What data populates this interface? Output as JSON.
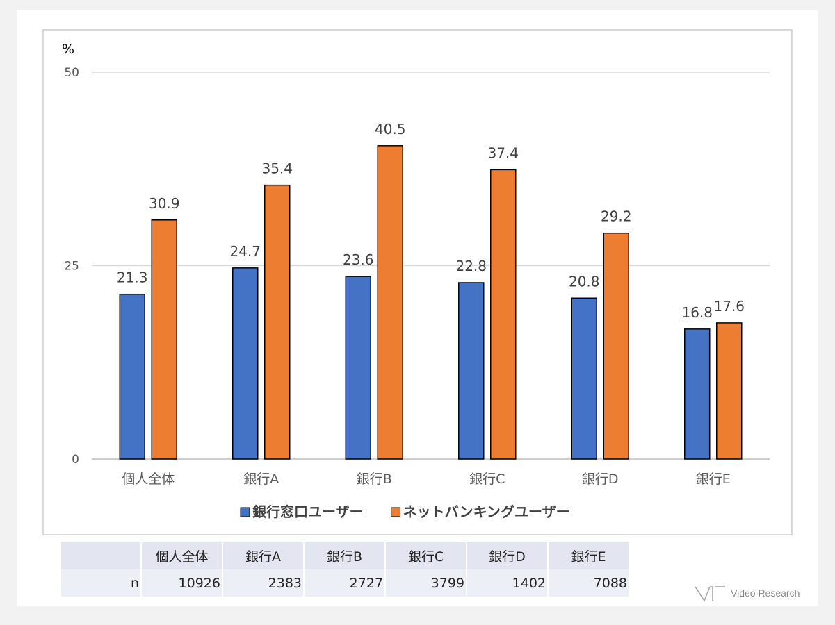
{
  "chart_data": {
    "type": "bar",
    "unit_label": "%",
    "ylim": [
      0,
      50
    ],
    "yticks": [
      0,
      25,
      50
    ],
    "grid": true,
    "legend_position": "bottom",
    "categories": [
      "個人全体",
      "銀行A",
      "銀行B",
      "銀行C",
      "銀行D",
      "銀行E"
    ],
    "series": [
      {
        "name": "銀行窓口ユーザー",
        "color": "#4472c4",
        "values": [
          21.3,
          24.7,
          23.6,
          22.8,
          20.8,
          16.8
        ]
      },
      {
        "name": "ネットバンキングユーザー",
        "color": "#ed7d31",
        "values": [
          30.9,
          35.4,
          40.5,
          37.4,
          29.2,
          17.6
        ]
      }
    ]
  },
  "sample_table": {
    "headers": [
      "個人全体",
      "銀行A",
      "銀行B",
      "銀行C",
      "銀行D",
      "銀行E"
    ],
    "row_label": "n",
    "values": [
      "10926",
      "2383",
      "2727",
      "3799",
      "1402",
      "7088"
    ]
  },
  "logo": {
    "text": "Video Research"
  }
}
